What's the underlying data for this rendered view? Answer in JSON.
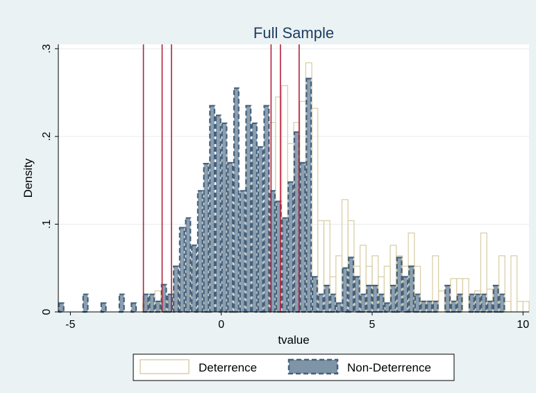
{
  "chart_data": {
    "type": "bar",
    "title": "Full Sample",
    "xlabel": "tvalue",
    "ylabel": "Density",
    "xlim": [
      -5.4,
      10.2
    ],
    "ylim": [
      0,
      0.305
    ],
    "x_ticks": [
      -5,
      0,
      5,
      10
    ],
    "x_tick_labels": [
      "-5",
      "0",
      "5",
      "10"
    ],
    "y_ticks": [
      0,
      0.1,
      0.2,
      0.3
    ],
    "y_tick_labels": [
      "0",
      ".1",
      ".2",
      ".3"
    ],
    "bin_width": 0.2,
    "grid": true,
    "legend_position": "bottom",
    "vertical_lines": [
      -2.58,
      -1.96,
      -1.65,
      1.65,
      1.96,
      2.58
    ],
    "colors": {
      "background": "#eaf2f3",
      "plot_area": "#ffffff",
      "deterrence_edge": "#d9cfa8",
      "non_deterrence_fill": "#7e95a8",
      "non_deterrence_edge": "#44607a",
      "vline": "#b51e3a",
      "title": "#1f3d63"
    },
    "series": [
      {
        "name": "Deterrence",
        "style": "outline",
        "bins": [
          [
            -2.5,
            0.012
          ],
          [
            -2.3,
            0.012
          ],
          [
            -2.1,
            0.024
          ],
          [
            -1.9,
            0.012
          ],
          [
            -1.7,
            0.012
          ],
          [
            -1.5,
            0.024
          ],
          [
            -1.3,
            0.036
          ],
          [
            -1.1,
            0.048
          ],
          [
            -0.9,
            0.06
          ],
          [
            -0.7,
            0.06
          ],
          [
            -0.5,
            0.084
          ],
          [
            -0.3,
            0.108
          ],
          [
            -0.1,
            0.12
          ],
          [
            0.1,
            0.18
          ],
          [
            0.3,
            0.168
          ],
          [
            0.5,
            0.12
          ],
          [
            0.7,
            0.108
          ],
          [
            0.9,
            0.18
          ],
          [
            1.1,
            0.132
          ],
          [
            1.3,
            0.096
          ],
          [
            1.5,
            0.108
          ],
          [
            1.7,
            0.216
          ],
          [
            1.9,
            0.245
          ],
          [
            2.1,
            0.258
          ],
          [
            2.3,
            0.192
          ],
          [
            2.5,
            0.216
          ],
          [
            2.7,
            0.24
          ],
          [
            2.9,
            0.284
          ],
          [
            3.1,
            0.232
          ],
          [
            3.3,
            0.104
          ],
          [
            3.5,
            0.104
          ],
          [
            3.7,
            0.04
          ],
          [
            3.9,
            0.064
          ],
          [
            4.1,
            0.128
          ],
          [
            4.3,
            0.104
          ],
          [
            4.5,
            0.052
          ],
          [
            4.7,
            0.076
          ],
          [
            4.9,
            0.052
          ],
          [
            5.1,
            0.064
          ],
          [
            5.3,
            0.04
          ],
          [
            5.5,
            0.052
          ],
          [
            5.7,
            0.076
          ],
          [
            5.9,
            0.064
          ],
          [
            6.1,
            0.052
          ],
          [
            6.3,
            0.09
          ],
          [
            6.5,
            0.052
          ],
          [
            6.7,
            0.012
          ],
          [
            6.9,
            0.012
          ],
          [
            7.1,
            0.064
          ],
          [
            7.3,
            0.024
          ],
          [
            7.5,
            0.012
          ],
          [
            7.7,
            0.038
          ],
          [
            7.9,
            0.038
          ],
          [
            8.1,
            0.038
          ],
          [
            8.3,
            0.012
          ],
          [
            8.5,
            0.024
          ],
          [
            8.7,
            0.09
          ],
          [
            8.9,
            0.026
          ],
          [
            9.1,
            0.012
          ],
          [
            9.3,
            0.064
          ],
          [
            9.5,
            0.012
          ],
          [
            9.7,
            0.064
          ],
          [
            9.9,
            0.012
          ],
          [
            10.1,
            0.012
          ]
        ]
      },
      {
        "name": "Non-Deterrence",
        "style": "filled-dashed",
        "bins": [
          [
            -5.3,
            0.01
          ],
          [
            -4.5,
            0.02
          ],
          [
            -3.9,
            0.01
          ],
          [
            -3.3,
            0.02
          ],
          [
            -2.9,
            0.01
          ],
          [
            -2.5,
            0.02
          ],
          [
            -2.3,
            0.02
          ],
          [
            -2.1,
            0.012
          ],
          [
            -1.9,
            0.031
          ],
          [
            -1.7,
            0.02
          ],
          [
            -1.5,
            0.052
          ],
          [
            -1.3,
            0.096
          ],
          [
            -1.1,
            0.107
          ],
          [
            -0.9,
            0.076
          ],
          [
            -0.7,
            0.138
          ],
          [
            -0.5,
            0.169
          ],
          [
            -0.3,
            0.235
          ],
          [
            -0.1,
            0.224
          ],
          [
            0.1,
            0.215
          ],
          [
            0.3,
            0.17
          ],
          [
            0.5,
            0.255
          ],
          [
            0.7,
            0.138
          ],
          [
            0.9,
            0.235
          ],
          [
            1.1,
            0.215
          ],
          [
            1.3,
            0.188
          ],
          [
            1.5,
            0.235
          ],
          [
            1.7,
            0.138
          ],
          [
            1.9,
            0.126
          ],
          [
            2.1,
            0.107
          ],
          [
            2.3,
            0.148
          ],
          [
            2.5,
            0.205
          ],
          [
            2.7,
            0.17
          ],
          [
            2.9,
            0.266
          ],
          [
            3.1,
            0.04
          ],
          [
            3.3,
            0.02
          ],
          [
            3.5,
            0.03
          ],
          [
            3.7,
            0.02
          ],
          [
            3.9,
            0.01
          ],
          [
            4.1,
            0.05
          ],
          [
            4.3,
            0.062
          ],
          [
            4.5,
            0.04
          ],
          [
            4.7,
            0.02
          ],
          [
            4.9,
            0.03
          ],
          [
            5.1,
            0.03
          ],
          [
            5.3,
            0.02
          ],
          [
            5.5,
            0.01
          ],
          [
            5.7,
            0.03
          ],
          [
            5.9,
            0.062
          ],
          [
            6.1,
            0.04
          ],
          [
            6.3,
            0.052
          ],
          [
            6.5,
            0.02
          ],
          [
            6.7,
            0.012
          ],
          [
            6.9,
            0.012
          ],
          [
            7.1,
            0.012
          ],
          [
            7.5,
            0.03
          ],
          [
            7.7,
            0.012
          ],
          [
            7.9,
            0.02
          ],
          [
            8.3,
            0.02
          ],
          [
            8.5,
            0.02
          ],
          [
            8.7,
            0.02
          ],
          [
            8.9,
            0.012
          ],
          [
            9.1,
            0.03
          ],
          [
            9.3,
            0.02
          ]
        ]
      }
    ]
  }
}
